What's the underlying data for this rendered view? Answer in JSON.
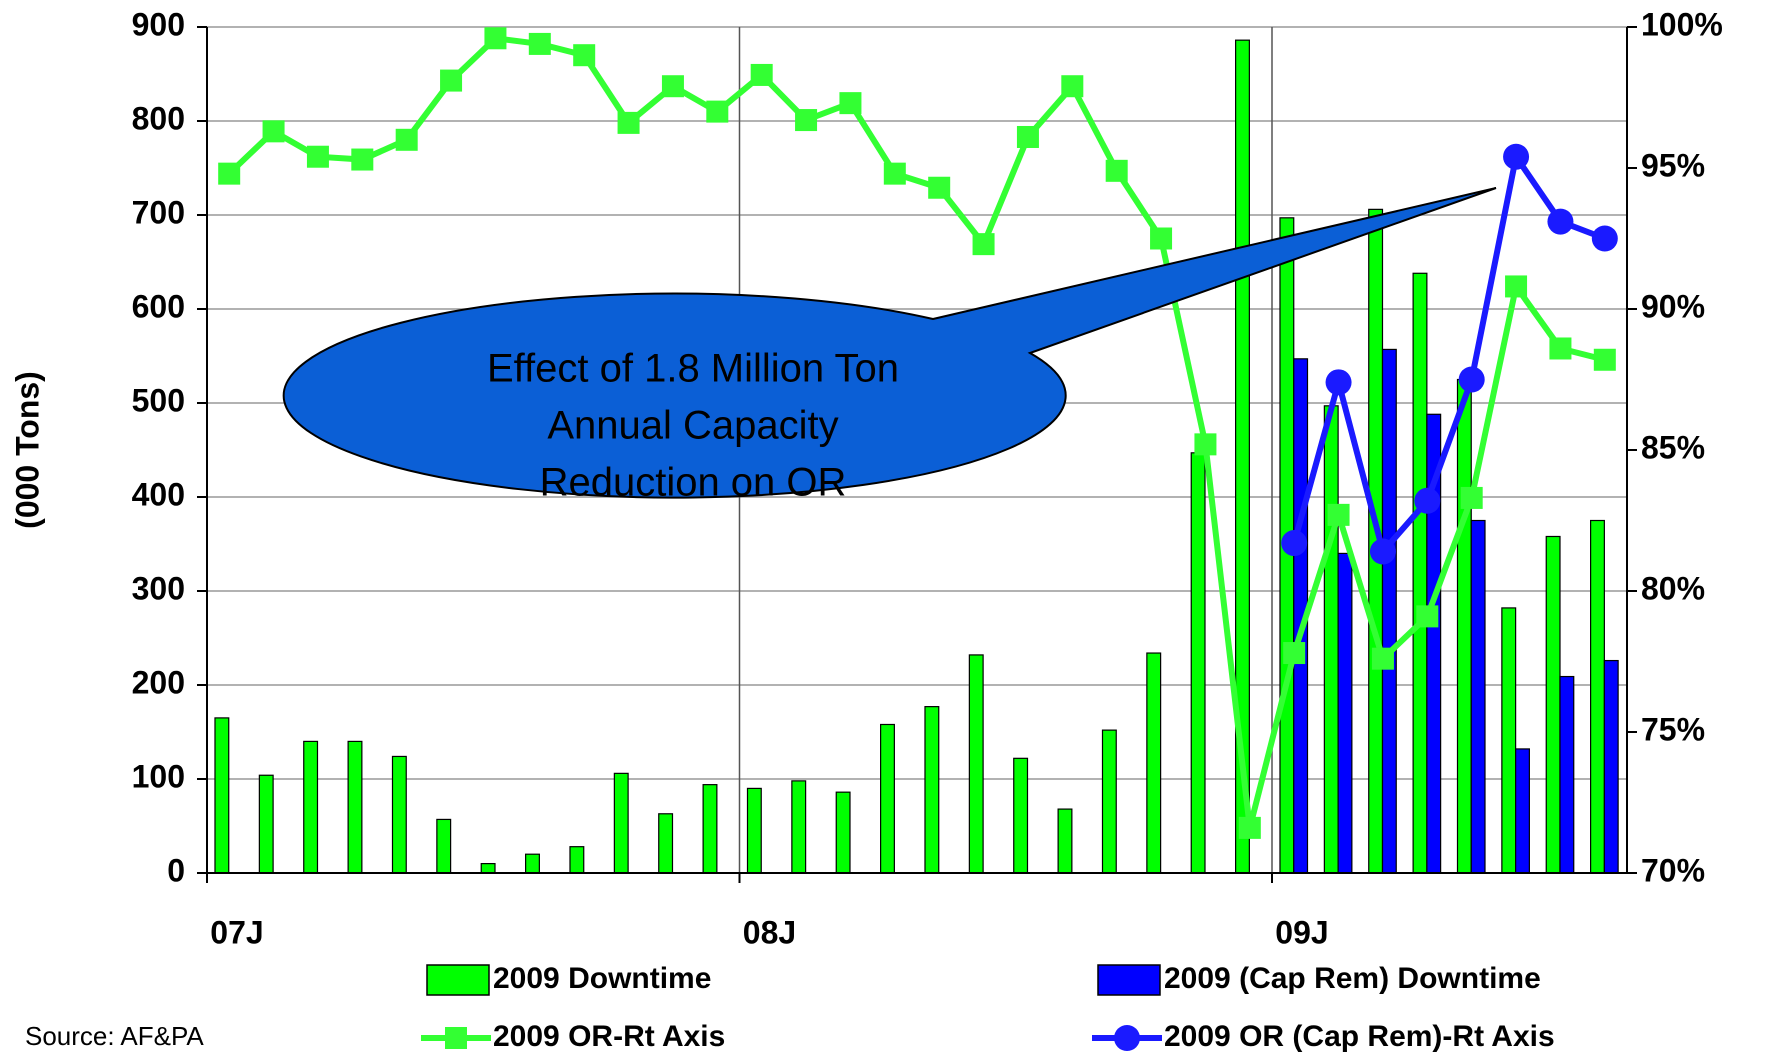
{
  "chart_data": {
    "type": "combo",
    "categories": [
      "07J",
      null,
      null,
      null,
      null,
      null,
      null,
      null,
      null,
      null,
      null,
      null,
      "08J",
      null,
      null,
      null,
      null,
      null,
      null,
      null,
      null,
      null,
      null,
      null,
      "09J",
      null,
      null,
      null,
      null,
      null,
      null,
      null
    ],
    "series": [
      {
        "name": "2009 Downtime",
        "type": "bar",
        "color": "#00ff00",
        "axis": "y",
        "values": [
          165,
          104,
          140,
          140,
          124,
          57,
          10,
          20,
          28,
          106,
          63,
          94,
          90,
          98,
          86,
          158,
          177,
          232,
          122,
          68,
          152,
          234,
          447,
          886,
          697,
          497,
          706,
          638,
          525,
          282,
          358,
          375
        ]
      },
      {
        "name": "2009 (Cap Rem) Downtime",
        "type": "bar",
        "color": "#0000ff",
        "axis": "y",
        "values": [
          null,
          null,
          null,
          null,
          null,
          null,
          null,
          null,
          null,
          null,
          null,
          null,
          null,
          null,
          null,
          null,
          null,
          null,
          null,
          null,
          null,
          null,
          null,
          null,
          547,
          340,
          557,
          488,
          375,
          132,
          209,
          226
        ]
      },
      {
        "name": "2009 OR-Rt Axis",
        "type": "line",
        "marker": "square",
        "color": "#33ff33",
        "axis": "y2",
        "values": [
          94.8,
          96.3,
          95.4,
          95.3,
          96.0,
          98.1,
          99.6,
          99.4,
          99.0,
          96.6,
          97.9,
          97.0,
          98.3,
          96.7,
          97.3,
          94.8,
          94.3,
          92.3,
          96.1,
          97.9,
          94.9,
          92.5,
          85.2,
          71.6,
          77.8,
          82.7,
          77.6,
          79.1,
          83.3,
          90.8,
          88.6,
          88.2
        ]
      },
      {
        "name": "2009 OR (Cap Rem)-Rt Axis",
        "type": "line",
        "marker": "circle",
        "color": "#1a1aff",
        "axis": "y2",
        "values": [
          null,
          null,
          null,
          null,
          null,
          null,
          null,
          null,
          null,
          null,
          null,
          null,
          null,
          null,
          null,
          null,
          null,
          null,
          null,
          null,
          null,
          null,
          null,
          null,
          81.7,
          87.4,
          81.4,
          83.2,
          87.5,
          95.4,
          93.1,
          92.5
        ]
      }
    ],
    "ylabel": "(000 Tons)",
    "ylim": [
      0,
      900
    ],
    "yticks": [
      0,
      100,
      200,
      300,
      400,
      500,
      600,
      700,
      800,
      900
    ],
    "y2lim": [
      70,
      100
    ],
    "y2ticks": [
      {
        "value": 70,
        "label": "70%"
      },
      {
        "value": 75,
        "label": "75%"
      },
      {
        "value": 80,
        "label": "80%"
      },
      {
        "value": 85,
        "label": "85%"
      },
      {
        "value": 90,
        "label": "90%"
      },
      {
        "value": 95,
        "label": "95%"
      },
      {
        "value": 100,
        "label": "100%"
      }
    ],
    "grid": true,
    "legend": "bottom",
    "annotation": [
      "Effect of 1.8 Million Ton",
      "Annual Capacity",
      "Reduction on  OR"
    ],
    "source": "Source:  AF&PA"
  }
}
